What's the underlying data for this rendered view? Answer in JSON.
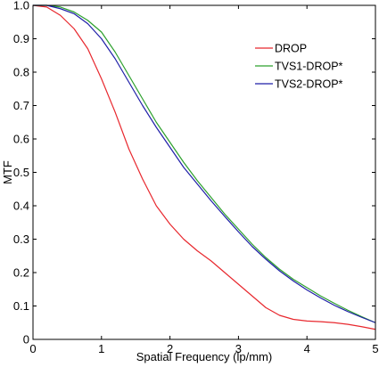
{
  "chart_data": {
    "type": "line",
    "title": "",
    "xlabel": "Spatial Frequency (lp/mm)",
    "ylabel": "MTF",
    "xlim": [
      0,
      5
    ],
    "ylim": [
      0,
      1
    ],
    "xticks": [
      "0",
      "1",
      "2",
      "3",
      "4",
      "5"
    ],
    "yticks": [
      "0",
      "0.1",
      "0.2",
      "0.3",
      "0.4",
      "0.5",
      "0.6",
      "0.7",
      "0.8",
      "0.9",
      "1.0"
    ],
    "grid": false,
    "legend_position": "top-right",
    "series": [
      {
        "name": "DROP",
        "color": "#e8282e",
        "x": [
          0,
          0.2,
          0.4,
          0.6,
          0.8,
          1.0,
          1.2,
          1.4,
          1.6,
          1.8,
          2.0,
          2.2,
          2.4,
          2.6,
          2.8,
          3.0,
          3.2,
          3.4,
          3.6,
          3.8,
          4.0,
          4.2,
          4.4,
          4.6,
          4.8,
          5.0
        ],
        "y": [
          1.0,
          0.995,
          0.97,
          0.93,
          0.87,
          0.78,
          0.68,
          0.57,
          0.48,
          0.4,
          0.345,
          0.3,
          0.265,
          0.235,
          0.2,
          0.165,
          0.13,
          0.095,
          0.072,
          0.06,
          0.055,
          0.053,
          0.05,
          0.045,
          0.038,
          0.03
        ]
      },
      {
        "name": "TVS1-DROP*",
        "color": "#2ca02c",
        "x": [
          0,
          0.2,
          0.4,
          0.6,
          0.8,
          1.0,
          1.2,
          1.4,
          1.6,
          1.8,
          2.0,
          2.2,
          2.4,
          2.6,
          2.8,
          3.0,
          3.2,
          3.4,
          3.6,
          3.8,
          4.0,
          4.2,
          4.4,
          4.6,
          4.8,
          5.0
        ],
        "y": [
          1.0,
          1.0,
          0.995,
          0.98,
          0.955,
          0.92,
          0.86,
          0.79,
          0.72,
          0.65,
          0.59,
          0.53,
          0.475,
          0.425,
          0.375,
          0.33,
          0.285,
          0.245,
          0.21,
          0.18,
          0.155,
          0.13,
          0.108,
          0.087,
          0.068,
          0.05
        ]
      },
      {
        "name": "TVS2-DROP*",
        "color": "#1f1fa8",
        "x": [
          0,
          0.2,
          0.4,
          0.6,
          0.8,
          1.0,
          1.2,
          1.4,
          1.6,
          1.8,
          2.0,
          2.2,
          2.4,
          2.6,
          2.8,
          3.0,
          3.2,
          3.4,
          3.6,
          3.8,
          4.0,
          4.2,
          4.4,
          4.6,
          4.8,
          5.0
        ],
        "y": [
          1.0,
          1.0,
          0.99,
          0.975,
          0.945,
          0.9,
          0.84,
          0.77,
          0.7,
          0.635,
          0.575,
          0.515,
          0.465,
          0.415,
          0.368,
          0.322,
          0.278,
          0.24,
          0.205,
          0.175,
          0.148,
          0.124,
          0.102,
          0.083,
          0.066,
          0.05
        ]
      }
    ]
  }
}
